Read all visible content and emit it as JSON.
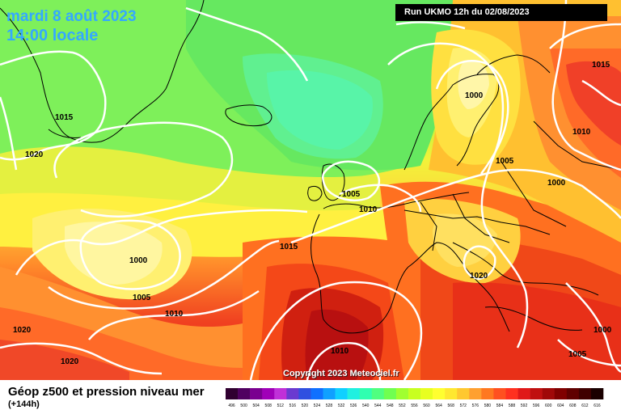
{
  "header": {
    "date": "mardi 8 août 2023",
    "time": "14:00 locale",
    "run": "Run UKMO 12h du 02/08/2023"
  },
  "copyright": "Copyright 2023 Meteociel.fr",
  "footer": {
    "title": "Géop z500 et pression niveau mer",
    "subtitle": "(+144h)"
  },
  "isobars": [
    {
      "label": "1015"
    },
    {
      "label": "1020"
    },
    {
      "label": "1000"
    },
    {
      "label": "1005"
    },
    {
      "label": "1010"
    },
    {
      "label": "1020"
    },
    {
      "label": "1020"
    },
    {
      "label": "1015"
    },
    {
      "label": "1005"
    },
    {
      "label": "1010"
    },
    {
      "label": "1010"
    },
    {
      "label": "1000"
    },
    {
      "label": "1015"
    },
    {
      "label": "1010"
    },
    {
      "label": "1005"
    },
    {
      "label": "1000"
    },
    {
      "label": "1020"
    },
    {
      "label": "1000"
    },
    {
      "label": "1005"
    }
  ],
  "legend": {
    "ticks": [
      "496",
      "500",
      "504",
      "508",
      "512",
      "516",
      "520",
      "524",
      "528",
      "532",
      "536",
      "540",
      "544",
      "548",
      "552",
      "556",
      "560",
      "564",
      "568",
      "572",
      "576",
      "580",
      "584",
      "588",
      "592",
      "596",
      "600",
      "604",
      "608",
      "612",
      "616"
    ],
    "colors": [
      "#300030",
      "#500060",
      "#7a0090",
      "#a000b8",
      "#c030d8",
      "#6a3ad0",
      "#3050e0",
      "#1070ff",
      "#10a0ff",
      "#10d0ff",
      "#20f0e0",
      "#30ffb0",
      "#50ff80",
      "#70ff50",
      "#a0ff30",
      "#c8ff20",
      "#e8ff20",
      "#ffff30",
      "#ffe830",
      "#ffc830",
      "#ffa030",
      "#ff7820",
      "#ff5020",
      "#ff3020",
      "#e01818",
      "#c01010",
      "#a00808",
      "#800000",
      "#600000",
      "#400000",
      "#1a0000"
    ]
  }
}
